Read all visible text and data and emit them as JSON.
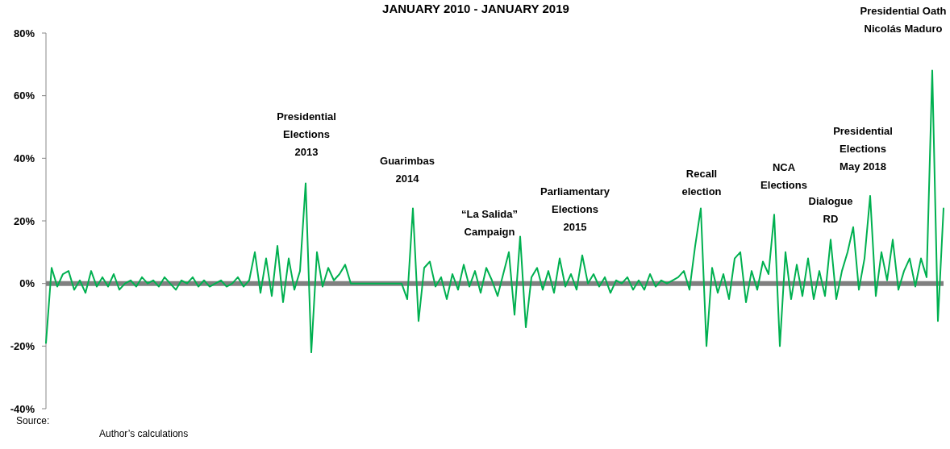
{
  "chart_data": {
    "type": "line",
    "title": "JANUARY 2010 - JANUARY 2019",
    "categories": [
      null,
      null,
      null,
      null,
      null,
      null,
      null,
      null,
      null,
      null,
      null,
      null,
      null,
      null,
      null,
      null,
      null,
      null,
      null,
      null,
      null,
      null,
      null,
      null,
      null,
      null,
      null,
      null,
      null,
      null,
      null,
      null,
      null,
      null,
      null,
      null,
      null,
      null,
      null,
      null,
      null,
      null,
      null,
      null,
      null,
      null,
      null,
      null,
      null,
      null,
      null,
      null,
      null,
      null,
      null,
      null,
      null,
      null,
      null,
      null,
      null,
      null,
      null,
      null,
      null,
      null,
      null,
      null,
      null,
      null,
      null,
      null,
      null,
      null,
      null,
      null,
      null,
      null,
      null,
      null,
      null,
      null,
      null,
      null,
      null,
      null,
      null,
      null,
      null,
      null,
      null,
      null,
      null,
      null,
      null,
      null,
      null,
      null,
      null,
      null,
      null,
      null,
      null,
      null,
      null,
      null,
      null,
      null,
      null,
      null,
      null,
      null,
      null,
      null,
      null,
      null,
      null,
      null,
      null,
      null,
      null,
      null,
      null,
      null,
      null,
      null,
      null,
      null,
      null,
      null,
      null,
      null,
      null,
      null,
      null,
      null,
      null,
      null,
      null,
      null,
      null,
      null,
      null,
      null,
      null,
      null,
      null,
      null,
      null,
      null,
      null,
      null,
      null,
      null,
      null,
      null,
      null,
      null,
      null,
      null
    ],
    "series": [
      {
        "color": "#00b050",
        "values": [
          -19,
          5,
          -1,
          3,
          4,
          -2,
          1,
          -3,
          4,
          -1,
          2,
          -1,
          3,
          -2,
          0,
          1,
          -1,
          2,
          0,
          1,
          -1,
          2,
          0,
          -2,
          1,
          0,
          2,
          -1,
          1,
          -1,
          0,
          1,
          -1,
          0,
          2,
          -1,
          1,
          10,
          -3,
          8,
          -4,
          12,
          -6,
          8,
          -2,
          4,
          32,
          -22,
          10,
          -1,
          5,
          1,
          3,
          6,
          0,
          0,
          0,
          0,
          0,
          0,
          0,
          0,
          0,
          0,
          -5,
          24,
          -12,
          5,
          7,
          -1,
          2,
          -5,
          3,
          -2,
          6,
          -1,
          4,
          -3,
          5,
          1,
          -4,
          3,
          10,
          -10,
          15,
          -14,
          2,
          5,
          -2,
          4,
          -3,
          8,
          -1,
          3,
          -2,
          9,
          0,
          3,
          -1,
          2,
          -3,
          1,
          0,
          2,
          -2,
          1,
          -2,
          3,
          -1,
          1,
          0,
          1,
          2,
          4,
          -2,
          12,
          24,
          -20,
          5,
          -3,
          3,
          -5,
          8,
          10,
          -6,
          4,
          -2,
          7,
          3,
          22,
          -20,
          10,
          -5,
          6,
          -4,
          8,
          -5,
          4,
          -4,
          14,
          -5,
          4,
          10,
          18,
          -2,
          8,
          28,
          -4,
          10,
          1,
          14,
          -2,
          4,
          8,
          -1,
          8,
          2,
          68,
          -12,
          24
        ]
      }
    ],
    "ylim": [
      -40,
      80
    ],
    "yticks": [
      {
        "value": -40,
        "label": "-40%"
      },
      {
        "value": -20,
        "label": "-20%"
      },
      {
        "value": 0,
        "label": "0%"
      },
      {
        "value": 20,
        "label": "20%"
      },
      {
        "value": 40,
        "label": "40%"
      },
      {
        "value": 60,
        "label": "60%"
      },
      {
        "value": 80,
        "label": "80%"
      }
    ],
    "tick_labels": "y",
    "grid": false,
    "ref_lines": [
      {
        "axis": "y",
        "value": 0,
        "color": "#808080"
      }
    ],
    "annotations": [
      "Presidential\nElections\n2013",
      "Guarimbas\n2014",
      "“La Salida”\nCampaign",
      "Parliamentary\nElections\n2015",
      "Recall\nelection",
      "NCA\nElections",
      "Dialogue\nRD",
      "Presidential\nElections\nMay 2018",
      "Presidential Oath\nNicolás Maduro",
      "Source:\nAuthor’s calculations"
    ]
  }
}
